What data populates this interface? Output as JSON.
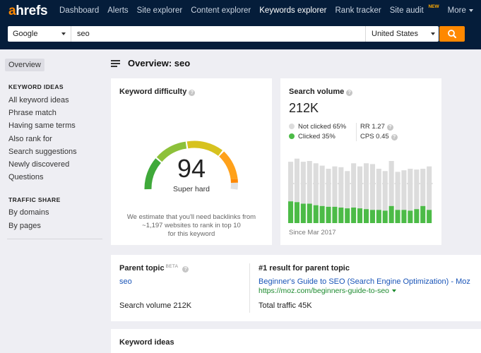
{
  "header": {
    "logo": "ahrefs",
    "nav": [
      {
        "label": "Dashboard",
        "active": false
      },
      {
        "label": "Alerts",
        "active": false
      },
      {
        "label": "Site explorer",
        "active": false
      },
      {
        "label": "Content explorer",
        "active": false
      },
      {
        "label": "Keywords explorer",
        "active": true
      },
      {
        "label": "Rank tracker",
        "active": false
      },
      {
        "label": "Site audit",
        "active": false,
        "badge": "NEW"
      },
      {
        "label": "More",
        "active": false
      }
    ],
    "search": {
      "engine": "Google",
      "query": "seo",
      "country": "United States"
    }
  },
  "sidebar": {
    "overview": "Overview",
    "keyword_ideas_heading": "KEYWORD IDEAS",
    "keyword_ideas": [
      "All keyword ideas",
      "Phrase match",
      "Having same terms",
      "Also rank for",
      "Search suggestions",
      "Newly discovered",
      "Questions"
    ],
    "traffic_share_heading": "TRAFFIC SHARE",
    "traffic_share": [
      "By domains",
      "By pages"
    ]
  },
  "main": {
    "title": "Overview: seo",
    "keyword_difficulty": {
      "title": "Keyword difficulty",
      "value": "94",
      "score": 94,
      "label": "Super hard",
      "note_line1": "We estimate that you'll need backlinks from",
      "note_line2": "~1,197 websites to rank in top 10",
      "note_line3": "for this keyword"
    },
    "search_volume": {
      "title": "Search volume",
      "value": "212K",
      "not_clicked": "Not clicked 65%",
      "clicked": "Clicked 35%",
      "rr": "RR 1.27",
      "cps": "CPS 0.45",
      "since": "Since Mar 2017"
    },
    "parent_topic": {
      "title": "Parent topic",
      "beta": "BETA",
      "topic": "seo",
      "volume": "Search volume 212K",
      "result_title": "#1 result for parent topic",
      "result_link": "Beginner's Guide to SEO (Search Engine Optimization) - Moz",
      "result_url": "https://moz.com/beginners-guide-to-seo",
      "total_traffic": "Total traffic 45K"
    },
    "keyword_ideas_title": "Keyword ideas"
  },
  "colors": {
    "header_bg": "#051d3a",
    "accent": "#ff8800",
    "clicked": "#4cbb47",
    "not_clicked": "#dcdcdc",
    "link": "#1a55b8",
    "url": "#1c8a2e"
  },
  "chart_data": {
    "type": "bar",
    "stacked": true,
    "series": [
      {
        "name": "Clicked",
        "values": [
          28,
          27,
          25,
          25,
          23,
          22,
          21,
          21,
          20,
          19,
          20,
          19,
          18,
          17,
          17,
          16,
          22,
          17,
          17,
          16,
          18,
          22,
          17
        ]
      },
      {
        "name": "Not clicked",
        "values": [
          51,
          56,
          54,
          55,
          54,
          52,
          49,
          52,
          52,
          48,
          57,
          54,
          59,
          59,
          53,
          51,
          58,
          49,
          51,
          54,
          51,
          48,
          56
        ]
      }
    ],
    "xlabel": "Since Mar 2017"
  }
}
